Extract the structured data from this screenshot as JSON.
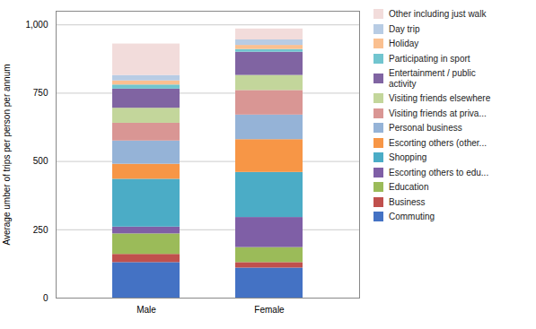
{
  "chart_data": {
    "type": "bar",
    "stacked": true,
    "categories": [
      "Male",
      "Female"
    ],
    "series": [
      {
        "name": "Commuting",
        "color": "#4472C4",
        "values": [
          130,
          110
        ]
      },
      {
        "name": "Business",
        "color": "#C0504D",
        "values": [
          30,
          20
        ]
      },
      {
        "name": "Education",
        "color": "#9BBB59",
        "values": [
          75,
          55
        ]
      },
      {
        "name": "Escorting others to edu...",
        "color": "#7F5FA6",
        "values": [
          25,
          110
        ]
      },
      {
        "name": "Shopping",
        "color": "#4BACC6",
        "values": [
          175,
          165
        ]
      },
      {
        "name": "Escorting others (other...",
        "color": "#F79646",
        "values": [
          55,
          120
        ]
      },
      {
        "name": "Personal business",
        "color": "#95B3D7",
        "values": [
          85,
          90
        ]
      },
      {
        "name": "Visiting friends at priva...",
        "color": "#D99694",
        "values": [
          65,
          90
        ]
      },
      {
        "name": "Visiting friends elsewhere",
        "color": "#C3D69B",
        "values": [
          55,
          55
        ]
      },
      {
        "name": "Entertainment / public\nactivity",
        "color": "#8064A2",
        "values": [
          70,
          85
        ]
      },
      {
        "name": "Participating in sport",
        "color": "#71C5CF",
        "values": [
          15,
          10
        ]
      },
      {
        "name": "Holiday",
        "color": "#FAC090",
        "values": [
          15,
          15
        ]
      },
      {
        "name": "Day trip",
        "color": "#B8CCE4",
        "values": [
          20,
          20
        ]
      },
      {
        "name": "Other including just walk",
        "color": "#F2DCDB",
        "values": [
          115,
          40
        ]
      }
    ],
    "y_label": "Average umber of trips per person per annum",
    "ylim": [
      0,
      1050
    ],
    "yticks": [
      0,
      250,
      500,
      750,
      {
        "value": 1000,
        "label": "1,000"
      }
    ],
    "grid": true,
    "legend": "right"
  }
}
